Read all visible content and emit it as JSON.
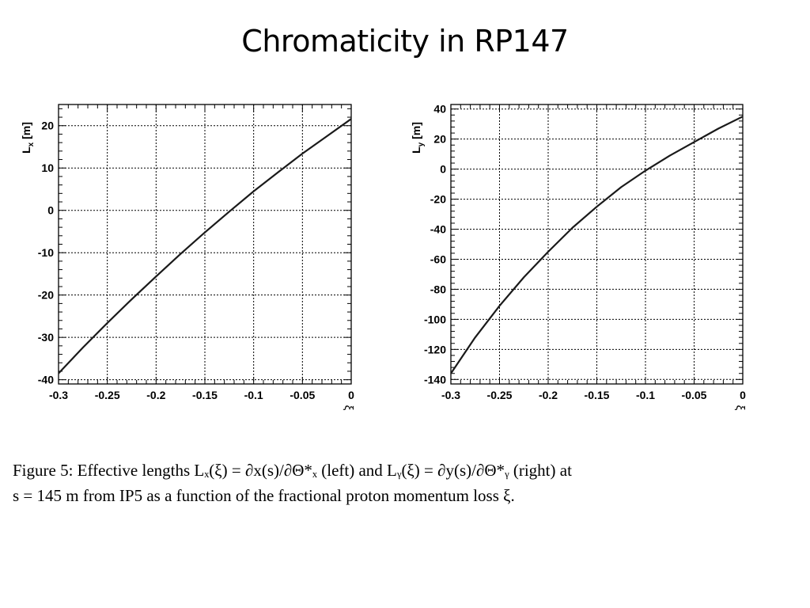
{
  "slide": {
    "title": "Chromaticity in RP147"
  },
  "caption": {
    "line1": "Figure 5: Effective lengths Lₓ(ξ) = ∂x(s)/∂Θ*ₓ (left) and Lᵧ(ξ) = ∂y(s)/∂Θ*ᵧ (right) at",
    "line2": "s = 145 m from IP5 as a function of the fractional proton momentum loss ξ."
  },
  "chart_data": [
    {
      "type": "line",
      "ylabel_main": "L",
      "ylabel_sub": "x",
      "ylabel_unit": " [m]",
      "xlabel": "ξ",
      "xlim": [
        -0.3,
        0
      ],
      "ylim": [
        -41,
        25
      ],
      "xticks": [
        -0.3,
        -0.25,
        -0.2,
        -0.15,
        -0.1,
        -0.05,
        0
      ],
      "xtick_labels": [
        "-0.3",
        "-0.25",
        "-0.2",
        "-0.15",
        "-0.1",
        "-0.05",
        "0"
      ],
      "yticks": [
        -40,
        -30,
        -20,
        -10,
        0,
        10,
        20
      ],
      "ytick_labels": [
        "-40",
        "-30",
        "-20",
        "-10",
        "0",
        "10",
        "20"
      ],
      "grid": true,
      "line_color": "#1a1a1a",
      "series": [
        {
          "x": [
            -0.3,
            -0.275,
            -0.25,
            -0.225,
            -0.2,
            -0.175,
            -0.15,
            -0.125,
            -0.1,
            -0.075,
            -0.05,
            -0.025,
            0
          ],
          "y": [
            -38.5,
            -32.4,
            -26.6,
            -21.0,
            -15.6,
            -10.3,
            -5.2,
            -0.3,
            4.5,
            9.0,
            13.4,
            17.5,
            21.6
          ]
        }
      ]
    },
    {
      "type": "line",
      "ylabel_main": "L",
      "ylabel_sub": "y",
      "ylabel_unit": " [m]",
      "xlabel": "ξ",
      "xlim": [
        -0.3,
        0
      ],
      "ylim": [
        -143,
        43
      ],
      "xticks": [
        -0.3,
        -0.25,
        -0.2,
        -0.15,
        -0.1,
        -0.05,
        0
      ],
      "xtick_labels": [
        "-0.3",
        "-0.25",
        "-0.2",
        "-0.15",
        "-0.1",
        "-0.05",
        "0"
      ],
      "yticks": [
        -140,
        -120,
        -100,
        -80,
        -60,
        -40,
        -20,
        0,
        20,
        40
      ],
      "ytick_labels": [
        "-140",
        "-120",
        "-100",
        "-80",
        "-60",
        "-40",
        "-20",
        "0",
        "20",
        "40"
      ],
      "grid": true,
      "line_color": "#1a1a1a",
      "series": [
        {
          "x": [
            -0.3,
            -0.275,
            -0.25,
            -0.225,
            -0.2,
            -0.175,
            -0.15,
            -0.125,
            -0.1,
            -0.075,
            -0.05,
            -0.025,
            0
          ],
          "y": [
            -136,
            -112,
            -91,
            -72,
            -55,
            -39,
            -25,
            -12,
            -1,
            9,
            18,
            27,
            35
          ]
        }
      ]
    }
  ]
}
